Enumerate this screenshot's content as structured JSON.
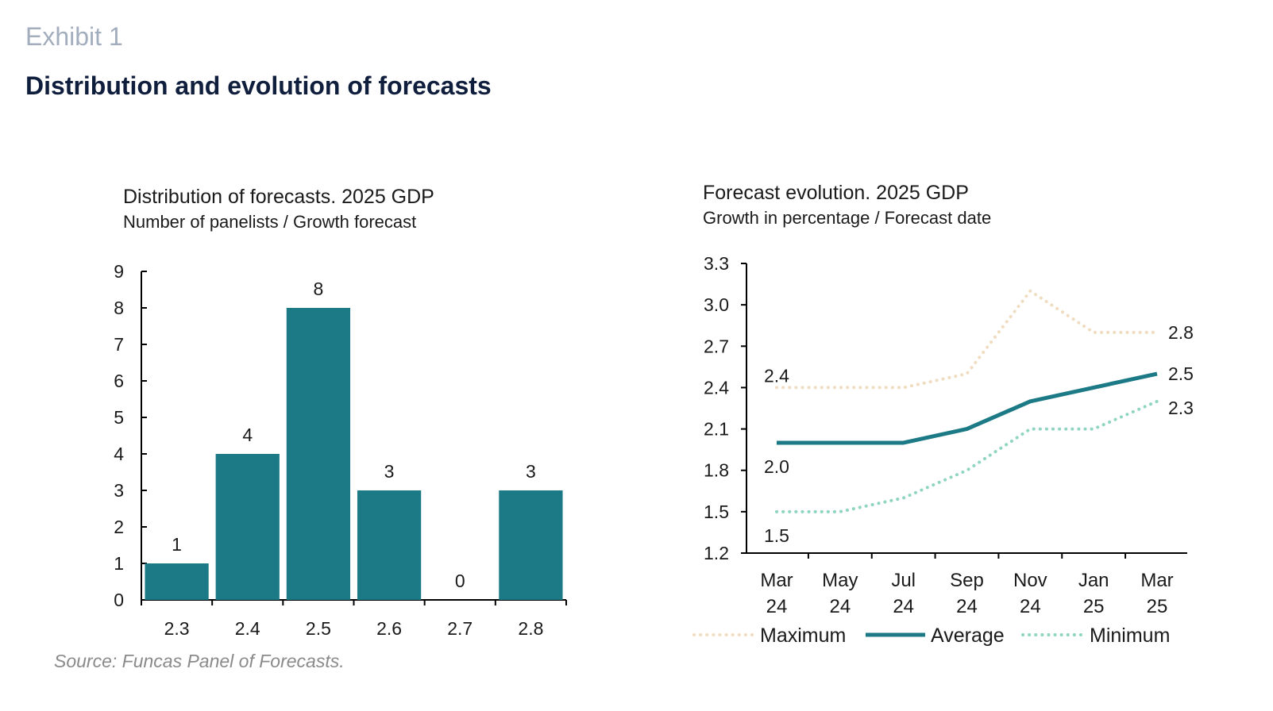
{
  "header": {
    "exhibit": "Exhibit 1",
    "title": "Distribution and evolution of forecasts"
  },
  "source": "Source: Funcas Panel of Forecasts.",
  "colors": {
    "bar": "#1b7a85",
    "average": "#1b7a85",
    "maximum": "#f0dcc1",
    "minimum": "#8fd5c1"
  },
  "chart_data": [
    {
      "type": "bar",
      "title": "Distribution of forecasts. 2025 GDP",
      "subtitle": "Number of panelists / Growth forecast",
      "categories": [
        "2.3",
        "2.4",
        "2.5",
        "2.6",
        "2.7",
        "2.8"
      ],
      "values": [
        1,
        4,
        8,
        3,
        0,
        3
      ],
      "data_labels": [
        "1",
        "4",
        "8",
        "3",
        "0",
        "3"
      ],
      "ylim": [
        0,
        9
      ],
      "yticks": [
        "0",
        "1",
        "2",
        "3",
        "4",
        "5",
        "6",
        "7",
        "8",
        "9"
      ]
    },
    {
      "type": "line",
      "title": "Forecast evolution. 2025 GDP",
      "subtitle": "Growth in percentage / Forecast date",
      "x": [
        "Mar 24",
        "May 24",
        "Jul 24",
        "Sep 24",
        "Nov 24",
        "Jan 25",
        "Mar 25"
      ],
      "ylim": [
        1.2,
        3.3
      ],
      "yticks": [
        "1.2",
        "1.5",
        "1.8",
        "2.1",
        "2.4",
        "2.7",
        "3.0",
        "3.3"
      ],
      "series": [
        {
          "name": "Maximum",
          "values": [
            2.4,
            2.4,
            2.4,
            2.5,
            3.1,
            2.8,
            2.8
          ],
          "start_label": "2.4",
          "end_label": "2.8"
        },
        {
          "name": "Average",
          "values": [
            2.0,
            2.0,
            2.0,
            2.1,
            2.3,
            2.4,
            2.5
          ],
          "start_label": "2.0",
          "end_label": "2.5"
        },
        {
          "name": "Minimum",
          "values": [
            1.5,
            1.5,
            1.6,
            1.8,
            2.1,
            2.1,
            2.3
          ],
          "start_label": "1.5",
          "end_label": "2.3"
        }
      ],
      "legend": [
        "Maximum",
        "Average",
        "Minimum"
      ],
      "legend_position": "bottom"
    }
  ]
}
